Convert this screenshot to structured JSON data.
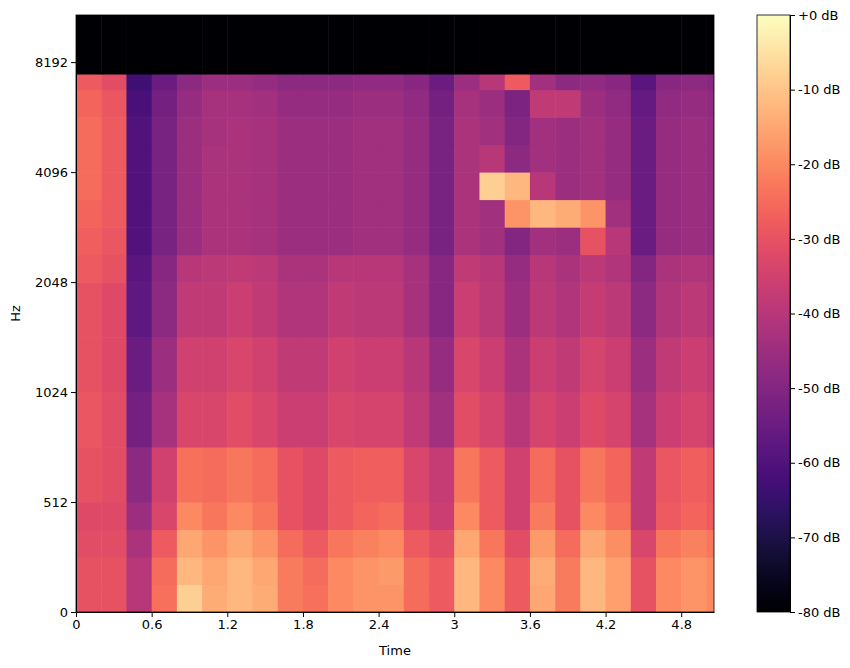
{
  "chart_data": {
    "type": "heatmap",
    "xlabel": "Time",
    "ylabel": "Hz",
    "xlim": [
      0,
      5.06
    ],
    "ylim": [
      0,
      11025
    ],
    "log": "y",
    "xticks": [
      0,
      0.6,
      1.2,
      1.8,
      2.4,
      3,
      3.6,
      4.2,
      4.8
    ],
    "yticks": [
      0,
      512,
      1024,
      2048,
      4096,
      8192
    ],
    "time_edges": [
      0,
      0.2,
      0.4,
      0.6,
      0.8,
      1,
      1.2,
      1.4,
      1.6,
      1.8,
      2,
      2.2,
      2.4,
      2.6,
      2.8,
      3,
      3.2,
      3.4,
      3.6,
      3.8,
      4,
      4.2,
      4.4,
      4.6,
      4.8,
      5,
      5.06
    ],
    "freq_edges": [
      0,
      128,
      256,
      384,
      512,
      724,
      1024,
      1448,
      2048,
      2435,
      2896,
      3444,
      4096,
      4871,
      5793,
      6889,
      7600,
      11025
    ],
    "cells": [
      [
        -30,
        -30,
        -40,
        -24,
        -8,
        -14,
        -12,
        -14,
        -22,
        -24,
        -20,
        -18,
        -18,
        -25,
        -28,
        -12,
        -20,
        -28,
        -15,
        -22,
        -12,
        -16,
        -30,
        -20,
        -18,
        -20
      ],
      [
        -30,
        -30,
        -40,
        -25,
        -12,
        -15,
        -12,
        -15,
        -22,
        -25,
        -20,
        -18,
        -17,
        -25,
        -28,
        -12,
        -20,
        -28,
        -14,
        -22,
        -12,
        -16,
        -30,
        -20,
        -18,
        -20
      ],
      [
        -31,
        -31,
        -42,
        -28,
        -15,
        -18,
        -15,
        -18,
        -25,
        -28,
        -23,
        -21,
        -20,
        -28,
        -31,
        -15,
        -23,
        -31,
        -17,
        -25,
        -15,
        -19,
        -33,
        -23,
        -21,
        -23
      ],
      [
        -32,
        -32,
        -45,
        -33,
        -20,
        -23,
        -20,
        -23,
        -30,
        -32,
        -28,
        -26,
        -25,
        -32,
        -36,
        -20,
        -28,
        -35,
        -22,
        -30,
        -20,
        -24,
        -38,
        -28,
        -26,
        -28
      ],
      [
        -30,
        -31,
        -48,
        -35,
        -24,
        -25,
        -23,
        -25,
        -30,
        -32,
        -28,
        -27,
        -27,
        -33,
        -37,
        -23,
        -28,
        -35,
        -25,
        -30,
        -23,
        -26,
        -38,
        -29,
        -27,
        -29
      ],
      [
        -29,
        -31,
        -53,
        -43,
        -33,
        -33,
        -31,
        -33,
        -36,
        -36,
        -33,
        -34,
        -34,
        -38,
        -44,
        -31,
        -34,
        -40,
        -34,
        -36,
        -32,
        -34,
        -43,
        -36,
        -34,
        -36
      ],
      [
        -30,
        -32,
        -55,
        -45,
        -35,
        -35,
        -33,
        -35,
        -38,
        -38,
        -35,
        -36,
        -36,
        -40,
        -46,
        -33,
        -36,
        -42,
        -36,
        -38,
        -34,
        -36,
        -45,
        -38,
        -36,
        -38
      ],
      [
        -30,
        -32,
        -57,
        -48,
        -38,
        -38,
        -36,
        -38,
        -41,
        -41,
        -38,
        -39,
        -39,
        -43,
        -49,
        -36,
        -39,
        -45,
        -39,
        -41,
        -37,
        -39,
        -48,
        -41,
        -39,
        -41
      ],
      [
        -28,
        -30,
        -58,
        -49,
        -40,
        -39,
        -38,
        -39,
        -42,
        -42,
        -40,
        -40,
        -40,
        -43,
        -49,
        -38,
        -40,
        -46,
        -40,
        -42,
        -39,
        -41,
        -50,
        -42,
        -41,
        -42
      ],
      [
        -27,
        -29,
        -60,
        -52,
        -45,
        -42,
        -42,
        -43,
        -45,
        -45,
        -45,
        -44,
        -44,
        -46,
        -52,
        -42,
        -44,
        -50,
        -44,
        -45,
        -30,
        -40,
        -55,
        -46,
        -45,
        -46
      ],
      [
        -26,
        -28,
        -60,
        -52,
        -45,
        -42,
        -42,
        -43,
        -45,
        -45,
        -45,
        -44,
        -44,
        -46,
        -52,
        -42,
        -44,
        -18,
        -12,
        -14,
        -18,
        -44,
        -55,
        -46,
        -45,
        -46
      ],
      [
        -25,
        -28,
        -60,
        -52,
        -45,
        -42,
        -42,
        -43,
        -45,
        -45,
        -45,
        -44,
        -44,
        -46,
        -52,
        -42,
        -8,
        -12,
        -40,
        -45,
        -44,
        -46,
        -55,
        -46,
        -45,
        -46
      ],
      [
        -25,
        -28,
        -60,
        -52,
        -45,
        -42,
        -42,
        -43,
        -45,
        -45,
        -45,
        -44,
        -44,
        -46,
        -52,
        -42,
        -40,
        -48,
        -44,
        -45,
        -44,
        -46,
        -55,
        -46,
        -45,
        -46
      ],
      [
        -25,
        -28,
        -60,
        -52,
        -45,
        -43,
        -42,
        -43,
        -45,
        -45,
        -45,
        -44,
        -44,
        -46,
        -52,
        -42,
        -44,
        -50,
        -44,
        -45,
        -44,
        -46,
        -55,
        -46,
        -45,
        -46
      ],
      [
        -26,
        -29,
        -61,
        -53,
        -46,
        -43,
        -43,
        -44,
        -46,
        -46,
        -46,
        -45,
        -45,
        -47,
        -53,
        -43,
        -45,
        -51,
        -38,
        -38,
        -45,
        -47,
        -56,
        -47,
        -46,
        -47
      ],
      [
        -28,
        -31,
        -63,
        -55,
        -48,
        -45,
        -45,
        -46,
        -48,
        -48,
        -48,
        -47,
        -47,
        -49,
        -55,
        -45,
        -40,
        -28,
        -44,
        -48,
        -47,
        -49,
        -58,
        -49,
        -48,
        -49
      ],
      [
        -80,
        -80,
        -80,
        -80,
        -80,
        -80,
        -80,
        -80,
        -80,
        -80,
        -80,
        -80,
        -80,
        -80,
        -80,
        -80,
        -80,
        -80,
        -80,
        -80,
        -80,
        -80,
        -80,
        -80,
        -80,
        -80
      ]
    ],
    "colorbar": {
      "range": [
        -80,
        0
      ],
      "ticks": [
        {
          "value": 0,
          "label": "+0 dB"
        },
        {
          "value": -10,
          "label": "-10 dB"
        },
        {
          "value": -20,
          "label": "-20 dB"
        },
        {
          "value": -30,
          "label": "-30 dB"
        },
        {
          "value": -40,
          "label": "-40 dB"
        },
        {
          "value": -50,
          "label": "-50 dB"
        },
        {
          "value": -60,
          "label": "-60 dB"
        },
        {
          "value": -70,
          "label": "-70 dB"
        },
        {
          "value": -80,
          "label": "-80 dB"
        }
      ]
    }
  }
}
